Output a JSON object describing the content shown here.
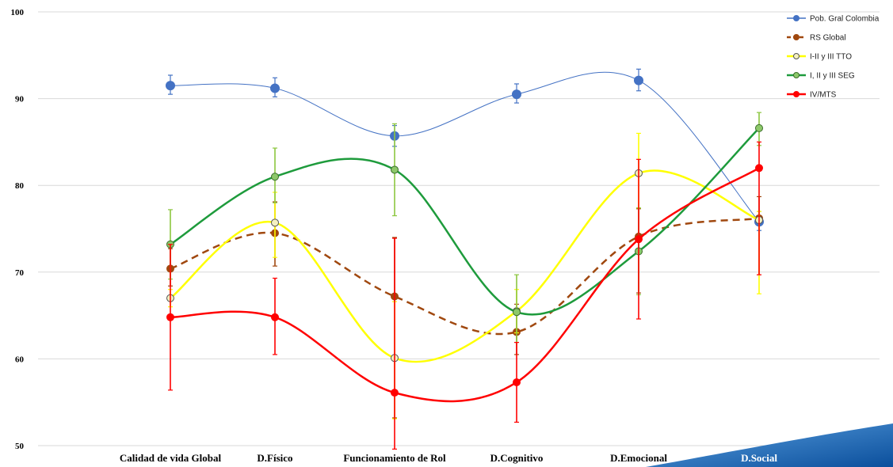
{
  "chart_data": {
    "type": "line",
    "categories": [
      "Calidad de vida Global",
      "D.Físico",
      "Funcionamiento de Rol",
      "D.Cognitivo",
      "D.Emocional",
      "D.Social"
    ],
    "ylim": [
      50,
      100
    ],
    "yticks": [
      50,
      60,
      70,
      80,
      90,
      100
    ],
    "grid": true,
    "legend_position": "top-right",
    "series": [
      {
        "name": "Pob. Gral Colombia",
        "color": "#4472C4",
        "line_width": 1,
        "dashed": false,
        "values": [
          91.5,
          91.2,
          85.7,
          90.5,
          92.1,
          75.8
        ],
        "err_low": [
          1.0,
          1.0,
          1.2,
          1.0,
          1.2,
          1.0
        ],
        "err_high": [
          1.2,
          1.2,
          1.2,
          1.2,
          1.3,
          1.2
        ]
      },
      {
        "name": "RS Global",
        "color": "#A0480F",
        "line_width": 2.5,
        "dashed": true,
        "values": [
          70.4,
          74.5,
          67.2,
          63.1,
          74.1,
          76.2
        ],
        "err_low": [
          2.0,
          3.8,
          14.0,
          2.6,
          6.5,
          6.5
        ],
        "err_high": [
          2.3,
          3.6,
          6.8,
          3.2,
          3.2,
          2.5
        ]
      },
      {
        "name": "I-II y III  TTO",
        "color": "#FFFF00",
        "line_width": 2.5,
        "dashed": false,
        "values": [
          67.0,
          75.7,
          60.1,
          65.5,
          81.4,
          76.0
        ],
        "err_low": [
          1.0,
          4.0,
          7.0,
          2.5,
          4.0,
          8.5
        ],
        "err_high": [
          1.0,
          3.5,
          6.5,
          2.5,
          4.6,
          1.0
        ]
      },
      {
        "name": "I, II y III SEG",
        "color": "#1E9B3C",
        "line_width": 2.5,
        "dashed": false,
        "values": [
          73.2,
          81.0,
          81.8,
          65.4,
          72.4,
          86.6
        ],
        "err_low": [
          4.0,
          3.0,
          5.3,
          3.5,
          5.0,
          2.0
        ],
        "err_high": [
          4.0,
          3.3,
          5.3,
          4.3,
          5.0,
          1.8
        ],
        "err_color": "#8CC63F"
      },
      {
        "name": "IV/MTS",
        "color": "#FF0000",
        "line_width": 2.5,
        "dashed": false,
        "values": [
          64.8,
          64.8,
          56.1,
          57.3,
          73.8,
          82.0
        ],
        "err_low": [
          8.4,
          4.3,
          6.5,
          4.6,
          9.2,
          12.3
        ],
        "err_high": [
          8.4,
          4.5,
          17.8,
          4.6,
          9.2,
          3.0
        ]
      }
    ]
  }
}
